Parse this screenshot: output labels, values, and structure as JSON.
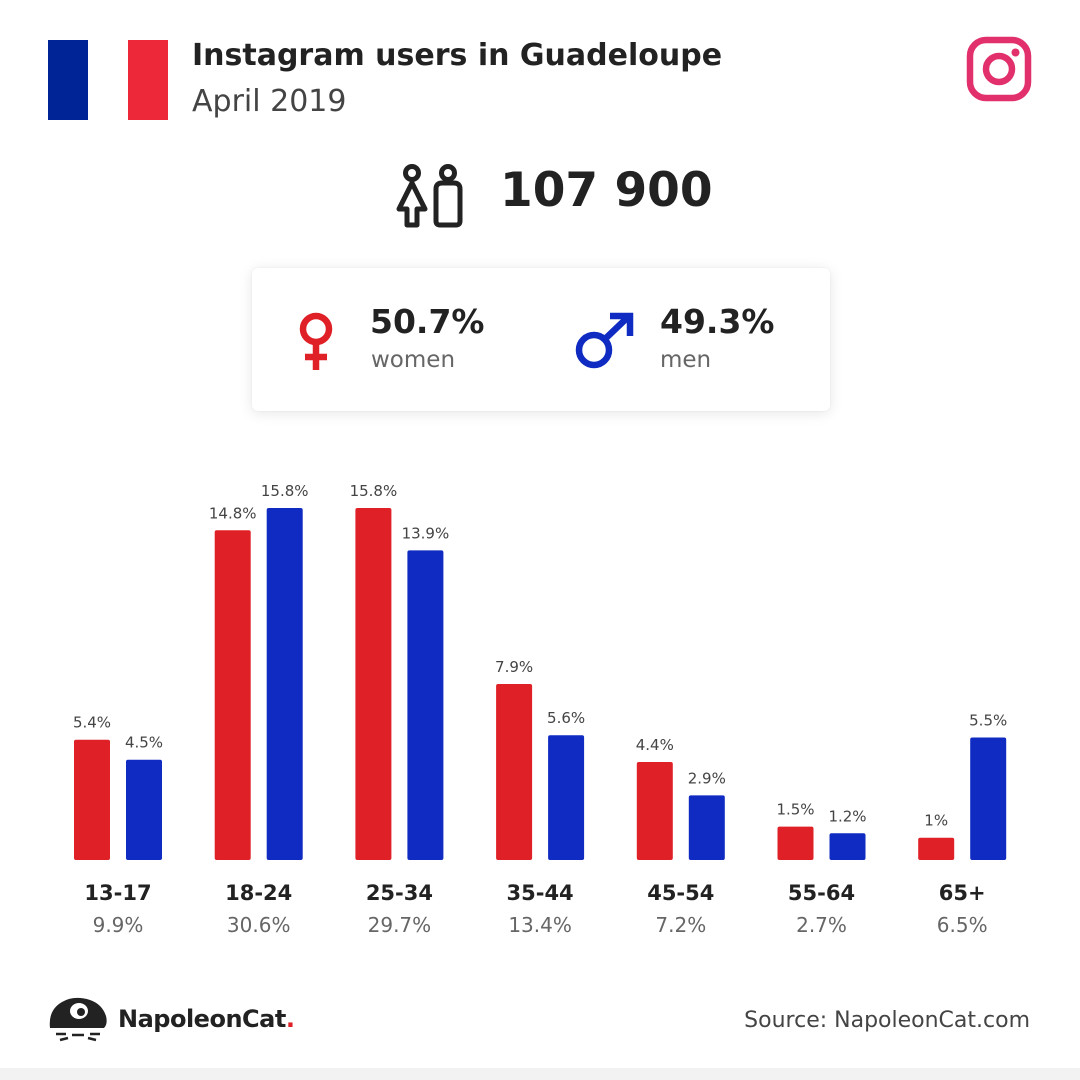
{
  "header": {
    "title": "Instagram users in Guadeloupe",
    "subtitle": "April 2019"
  },
  "summary": {
    "total_users": "107 900",
    "women_pct": "50.7%",
    "women_label": "women",
    "men_pct": "49.3%",
    "men_label": "men"
  },
  "colors": {
    "women": "#e02027",
    "men": "#0f2bc1",
    "flag_blue": "#002395",
    "flag_red": "#ed2939",
    "instagram": "#e1306c"
  },
  "icons": {
    "flag": "france-flag-icon",
    "instagram": "instagram-icon",
    "people": "people-icon",
    "female": "female-symbol-icon",
    "male": "male-symbol-icon",
    "brand": "napoleoncat-logo"
  },
  "chart_data": {
    "type": "bar",
    "categories": [
      "13-17",
      "18-24",
      "25-34",
      "35-44",
      "45-54",
      "55-64",
      "65+"
    ],
    "category_totals": [
      "9.9%",
      "30.6%",
      "29.7%",
      "13.4%",
      "7.2%",
      "2.7%",
      "6.5%"
    ],
    "series": [
      {
        "key": "women",
        "values": [
          5.4,
          14.8,
          15.8,
          7.9,
          4.4,
          1.5,
          1.0
        ],
        "labels": [
          "5.4%",
          "14.8%",
          "15.8%",
          "7.9%",
          "4.4%",
          "1.5%",
          "1%"
        ]
      },
      {
        "key": "men",
        "values": [
          4.5,
          15.8,
          13.9,
          5.6,
          2.9,
          1.2,
          5.5
        ],
        "labels": [
          "4.5%",
          "15.8%",
          "13.9%",
          "5.6%",
          "2.9%",
          "1.2%",
          "5.5%"
        ]
      }
    ],
    "ylim": [
      0,
      15.8
    ],
    "grid": false,
    "legend": "none"
  },
  "footer": {
    "brand_name": "NapoleonCat",
    "brand_dot": ".",
    "source": "Source: NapoleonCat.com"
  }
}
